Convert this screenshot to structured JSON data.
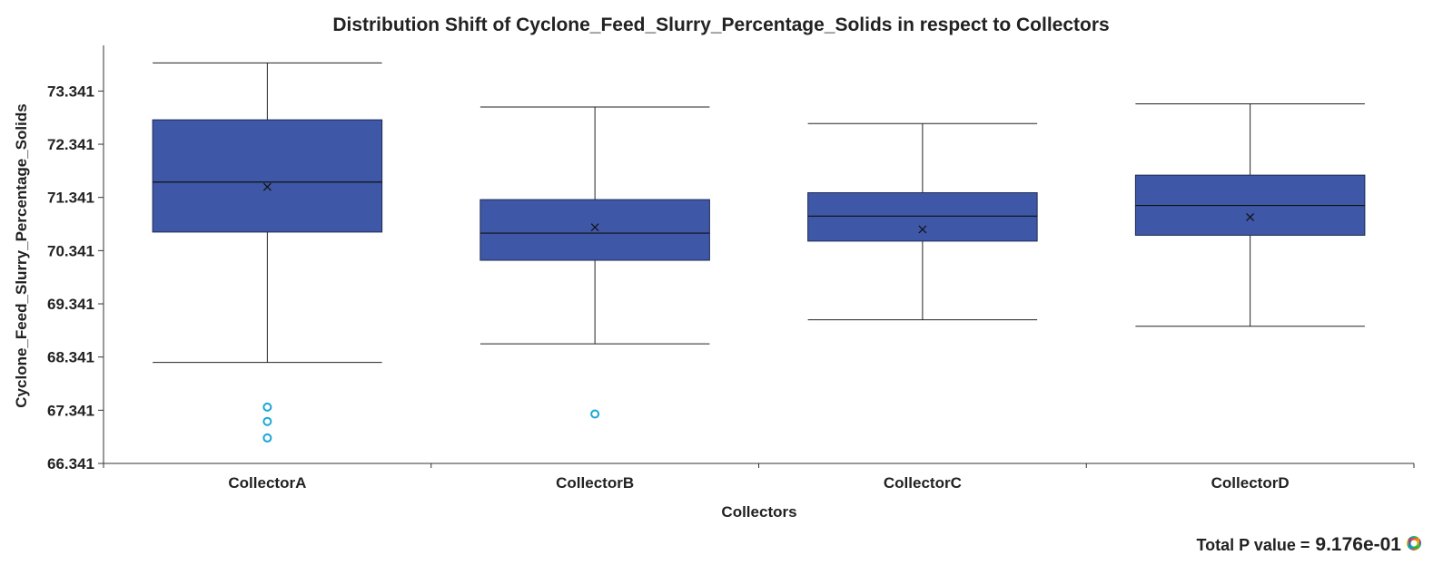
{
  "chart_data": {
    "type": "box",
    "title": "Distribution Shift of Cyclone_Feed_Slurry_Percentage_Solids in respect to Collectors",
    "xlabel": "Collectors",
    "ylabel": "Cyclone_Feed_Slurry_Percentage_Solids",
    "ylim": [
      66.341,
      74.2
    ],
    "yticks": [
      "66.341",
      "67.341",
      "68.341",
      "69.341",
      "70.341",
      "71.341",
      "72.341",
      "73.341"
    ],
    "categories": [
      "CollectorA",
      "CollectorB",
      "CollectorC",
      "CollectorD"
    ],
    "boxes": [
      {
        "name": "CollectorA",
        "whisker_low": 68.24,
        "q1": 70.69,
        "median": 71.63,
        "q3": 72.8,
        "whisker_high": 73.87,
        "mean": 71.54,
        "outliers": [
          67.4,
          67.13,
          66.82
        ]
      },
      {
        "name": "CollectorB",
        "whisker_low": 68.59,
        "q1": 70.16,
        "median": 70.67,
        "q3": 71.3,
        "whisker_high": 73.04,
        "mean": 70.78,
        "outliers": [
          67.27
        ]
      },
      {
        "name": "CollectorC",
        "whisker_low": 69.04,
        "q1": 70.52,
        "median": 70.99,
        "q3": 71.43,
        "whisker_high": 72.73,
        "mean": 70.74,
        "outliers": []
      },
      {
        "name": "CollectorD",
        "whisker_low": 68.92,
        "q1": 70.63,
        "median": 71.19,
        "q3": 71.76,
        "whisker_high": 73.1,
        "mean": 70.97,
        "outliers": []
      }
    ],
    "colors": {
      "box_fill": "#3e57a6",
      "box_edge": "#1e2a55",
      "outlier": "#1aa6d6",
      "axis": "#333333"
    },
    "grid": false,
    "legend": "none"
  },
  "footer": {
    "p_label": "Total P value =",
    "p_value": "9.176e-01"
  }
}
